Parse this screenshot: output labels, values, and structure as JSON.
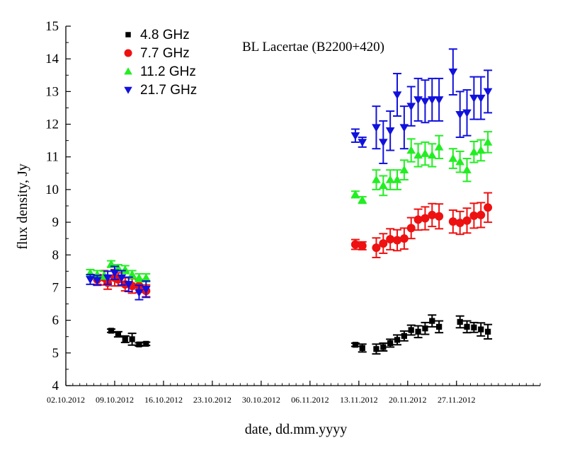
{
  "chart_data": {
    "type": "scatter",
    "title": "",
    "annotation": "BL Lacertae (B2200+420)",
    "xlabel": "date, dd.mm.yyyy",
    "ylabel": "flux density, Jy",
    "ylim": [
      4,
      15
    ],
    "xlim": [
      "2012-10-02",
      "2012-12-09"
    ],
    "x_ticks": [
      "02.10.2012",
      "09.10.2012",
      "16.10.2012",
      "23.10.2012",
      "30.10.2012",
      "06.11.2012",
      "13.11.2012",
      "20.11.2012",
      "27.11.2012"
    ],
    "y_ticks": [
      4,
      5,
      6,
      7,
      8,
      9,
      10,
      11,
      12,
      13,
      14,
      15
    ],
    "legend_position": "top-left",
    "error_bars": true,
    "series": [
      {
        "name": "4.8 GHz",
        "marker": "square",
        "color": "#000000",
        "points": [
          {
            "x": "2012-10-08 12:00",
            "y": 5.68,
            "err": 0.05
          },
          {
            "x": "2012-10-09 12:00",
            "y": 5.57,
            "err": 0.08
          },
          {
            "x": "2012-10-10 12:00",
            "y": 5.42,
            "err": 0.1
          },
          {
            "x": "2012-10-11 12:00",
            "y": 5.42,
            "err": 0.18
          },
          {
            "x": "2012-10-12 12:00",
            "y": 5.26,
            "err": 0.05
          },
          {
            "x": "2012-10-13 12:00",
            "y": 5.28,
            "err": 0.05
          },
          {
            "x": "2012-11-12 12:00",
            "y": 5.25,
            "err": 0.05
          },
          {
            "x": "2012-11-13 12:00",
            "y": 5.15,
            "err": 0.12
          },
          {
            "x": "2012-11-15 12:00",
            "y": 5.12,
            "err": 0.15
          },
          {
            "x": "2012-11-16 12:00",
            "y": 5.18,
            "err": 0.12
          },
          {
            "x": "2012-11-17 12:00",
            "y": 5.3,
            "err": 0.12
          },
          {
            "x": "2012-11-18 12:00",
            "y": 5.4,
            "err": 0.15
          },
          {
            "x": "2012-11-19 12:00",
            "y": 5.52,
            "err": 0.15
          },
          {
            "x": "2012-11-20 12:00",
            "y": 5.7,
            "err": 0.15
          },
          {
            "x": "2012-11-21 12:00",
            "y": 5.65,
            "err": 0.18
          },
          {
            "x": "2012-11-22 12:00",
            "y": 5.75,
            "err": 0.18
          },
          {
            "x": "2012-11-23 12:00",
            "y": 5.98,
            "err": 0.18
          },
          {
            "x": "2012-11-24 12:00",
            "y": 5.8,
            "err": 0.18
          },
          {
            "x": "2012-11-27 12:00",
            "y": 5.95,
            "err": 0.18
          },
          {
            "x": "2012-11-28 12:00",
            "y": 5.8,
            "err": 0.18
          },
          {
            "x": "2012-11-29 12:00",
            "y": 5.78,
            "err": 0.15
          },
          {
            "x": "2012-11-30 12:00",
            "y": 5.72,
            "err": 0.2
          },
          {
            "x": "2012-12-01 12:00",
            "y": 5.65,
            "err": 0.22
          }
        ]
      },
      {
        "name": "7.7 GHz",
        "marker": "circle",
        "color": "#ee1111",
        "points": [
          {
            "x": "2012-10-06 12:00",
            "y": 7.25,
            "err": 0.15
          },
          {
            "x": "2012-10-07 12:00",
            "y": 7.3,
            "err": 0.22
          },
          {
            "x": "2012-10-08 00:00",
            "y": 7.15,
            "err": 0.2
          },
          {
            "x": "2012-10-09 00:00",
            "y": 7.3,
            "err": 0.25
          },
          {
            "x": "2012-10-09 12:00",
            "y": 7.25,
            "err": 0.2
          },
          {
            "x": "2012-10-10 12:00",
            "y": 7.1,
            "err": 0.2
          },
          {
            "x": "2012-10-11 12:00",
            "y": 7.05,
            "err": 0.22
          },
          {
            "x": "2012-10-12 12:00",
            "y": 7.05,
            "err": 0.2
          },
          {
            "x": "2012-10-13 12:00",
            "y": 6.9,
            "err": 0.18
          },
          {
            "x": "2012-11-12 12:00",
            "y": 8.32,
            "err": 0.15
          },
          {
            "x": "2012-11-13 12:00",
            "y": 8.28,
            "err": 0.12
          },
          {
            "x": "2012-11-15 12:00",
            "y": 8.22,
            "err": 0.3
          },
          {
            "x": "2012-11-16 12:00",
            "y": 8.35,
            "err": 0.3
          },
          {
            "x": "2012-11-17 12:00",
            "y": 8.48,
            "err": 0.32
          },
          {
            "x": "2012-11-18 12:00",
            "y": 8.45,
            "err": 0.32
          },
          {
            "x": "2012-11-19 12:00",
            "y": 8.5,
            "err": 0.32
          },
          {
            "x": "2012-11-20 12:00",
            "y": 8.82,
            "err": 0.32
          },
          {
            "x": "2012-11-21 12:00",
            "y": 9.08,
            "err": 0.32
          },
          {
            "x": "2012-11-22 12:00",
            "y": 9.12,
            "err": 0.35
          },
          {
            "x": "2012-11-23 12:00",
            "y": 9.22,
            "err": 0.35
          },
          {
            "x": "2012-11-24 12:00",
            "y": 9.18,
            "err": 0.38
          },
          {
            "x": "2012-11-26 12:00",
            "y": 9.02,
            "err": 0.35
          },
          {
            "x": "2012-11-27 12:00",
            "y": 8.98,
            "err": 0.35
          },
          {
            "x": "2012-11-28 12:00",
            "y": 9.05,
            "err": 0.38
          },
          {
            "x": "2012-11-29 12:00",
            "y": 9.2,
            "err": 0.38
          },
          {
            "x": "2012-11-30 12:00",
            "y": 9.22,
            "err": 0.38
          },
          {
            "x": "2012-12-01 12:00",
            "y": 9.45,
            "err": 0.45
          }
        ]
      },
      {
        "name": "11.2 GHz",
        "marker": "triangle-up",
        "color": "#22ee22",
        "points": [
          {
            "x": "2012-10-05 12:00",
            "y": 7.45,
            "err": 0.1
          },
          {
            "x": "2012-10-06 12:00",
            "y": 7.4,
            "err": 0.12
          },
          {
            "x": "2012-10-07 12:00",
            "y": 7.38,
            "err": 0.12
          },
          {
            "x": "2012-10-08 12:00",
            "y": 7.72,
            "err": 0.1
          },
          {
            "x": "2012-10-09 12:00",
            "y": 7.6,
            "err": 0.1
          },
          {
            "x": "2012-10-10 12:00",
            "y": 7.55,
            "err": 0.12
          },
          {
            "x": "2012-10-11 12:00",
            "y": 7.4,
            "err": 0.12
          },
          {
            "x": "2012-10-12 12:00",
            "y": 7.3,
            "err": 0.12
          },
          {
            "x": "2012-10-13 12:00",
            "y": 7.3,
            "err": 0.12
          },
          {
            "x": "2012-11-12 12:00",
            "y": 9.85,
            "err": 0.1
          },
          {
            "x": "2012-11-13 12:00",
            "y": 9.68,
            "err": 0.1
          },
          {
            "x": "2012-11-15 12:00",
            "y": 10.3,
            "err": 0.3
          },
          {
            "x": "2012-11-16 12:00",
            "y": 10.12,
            "err": 0.3
          },
          {
            "x": "2012-11-17 12:00",
            "y": 10.3,
            "err": 0.3
          },
          {
            "x": "2012-11-18 12:00",
            "y": 10.3,
            "err": 0.3
          },
          {
            "x": "2012-11-19 12:00",
            "y": 10.6,
            "err": 0.3
          },
          {
            "x": "2012-11-20 12:00",
            "y": 11.2,
            "err": 0.35
          },
          {
            "x": "2012-11-21 12:00",
            "y": 11.05,
            "err": 0.35
          },
          {
            "x": "2012-11-22 12:00",
            "y": 11.1,
            "err": 0.35
          },
          {
            "x": "2012-11-23 12:00",
            "y": 11.05,
            "err": 0.35
          },
          {
            "x": "2012-11-24 12:00",
            "y": 11.3,
            "err": 0.35
          },
          {
            "x": "2012-11-26 12:00",
            "y": 10.95,
            "err": 0.3
          },
          {
            "x": "2012-11-27 12:00",
            "y": 10.85,
            "err": 0.32
          },
          {
            "x": "2012-11-28 12:00",
            "y": 10.6,
            "err": 0.35
          },
          {
            "x": "2012-11-29 12:00",
            "y": 11.15,
            "err": 0.32
          },
          {
            "x": "2012-11-30 12:00",
            "y": 11.2,
            "err": 0.32
          },
          {
            "x": "2012-12-01 12:00",
            "y": 11.45,
            "err": 0.32
          }
        ]
      },
      {
        "name": "21.7 GHz",
        "marker": "triangle-down",
        "color": "#1111dd",
        "points": [
          {
            "x": "2012-10-05 12:00",
            "y": 7.25,
            "err": 0.15
          },
          {
            "x": "2012-10-06 12:00",
            "y": 7.22,
            "err": 0.15
          },
          {
            "x": "2012-10-08 00:00",
            "y": 7.3,
            "err": 0.2
          },
          {
            "x": "2012-10-09 00:00",
            "y": 7.45,
            "err": 0.2
          },
          {
            "x": "2012-10-10 00:00",
            "y": 7.3,
            "err": 0.22
          },
          {
            "x": "2012-10-11 00:00",
            "y": 7.1,
            "err": 0.22
          },
          {
            "x": "2012-10-12 12:00",
            "y": 6.85,
            "err": 0.22
          },
          {
            "x": "2012-10-13 12:00",
            "y": 6.95,
            "err": 0.25
          },
          {
            "x": "2012-11-12 12:00",
            "y": 11.65,
            "err": 0.2
          },
          {
            "x": "2012-11-13 12:00",
            "y": 11.45,
            "err": 0.15
          },
          {
            "x": "2012-11-15 12:00",
            "y": 11.9,
            "err": 0.65
          },
          {
            "x": "2012-11-16 12:00",
            "y": 11.45,
            "err": 0.65
          },
          {
            "x": "2012-11-17 12:00",
            "y": 11.8,
            "err": 0.6
          },
          {
            "x": "2012-11-18 12:00",
            "y": 12.9,
            "err": 0.65
          },
          {
            "x": "2012-11-19 12:00",
            "y": 11.9,
            "err": 0.65
          },
          {
            "x": "2012-11-20 12:00",
            "y": 12.55,
            "err": 0.6
          },
          {
            "x": "2012-11-21 12:00",
            "y": 12.75,
            "err": 0.65
          },
          {
            "x": "2012-11-22 12:00",
            "y": 12.7,
            "err": 0.65
          },
          {
            "x": "2012-11-23 12:00",
            "y": 12.75,
            "err": 0.65
          },
          {
            "x": "2012-11-24 12:00",
            "y": 12.75,
            "err": 0.65
          },
          {
            "x": "2012-11-26 12:00",
            "y": 13.6,
            "err": 0.7
          },
          {
            "x": "2012-11-27 12:00",
            "y": 12.3,
            "err": 0.7
          },
          {
            "x": "2012-11-28 12:00",
            "y": 12.35,
            "err": 0.7
          },
          {
            "x": "2012-11-29 12:00",
            "y": 12.8,
            "err": 0.65
          },
          {
            "x": "2012-11-30 12:00",
            "y": 12.8,
            "err": 0.65
          },
          {
            "x": "2012-12-01 12:00",
            "y": 13.0,
            "err": 0.65
          }
        ]
      }
    ]
  }
}
